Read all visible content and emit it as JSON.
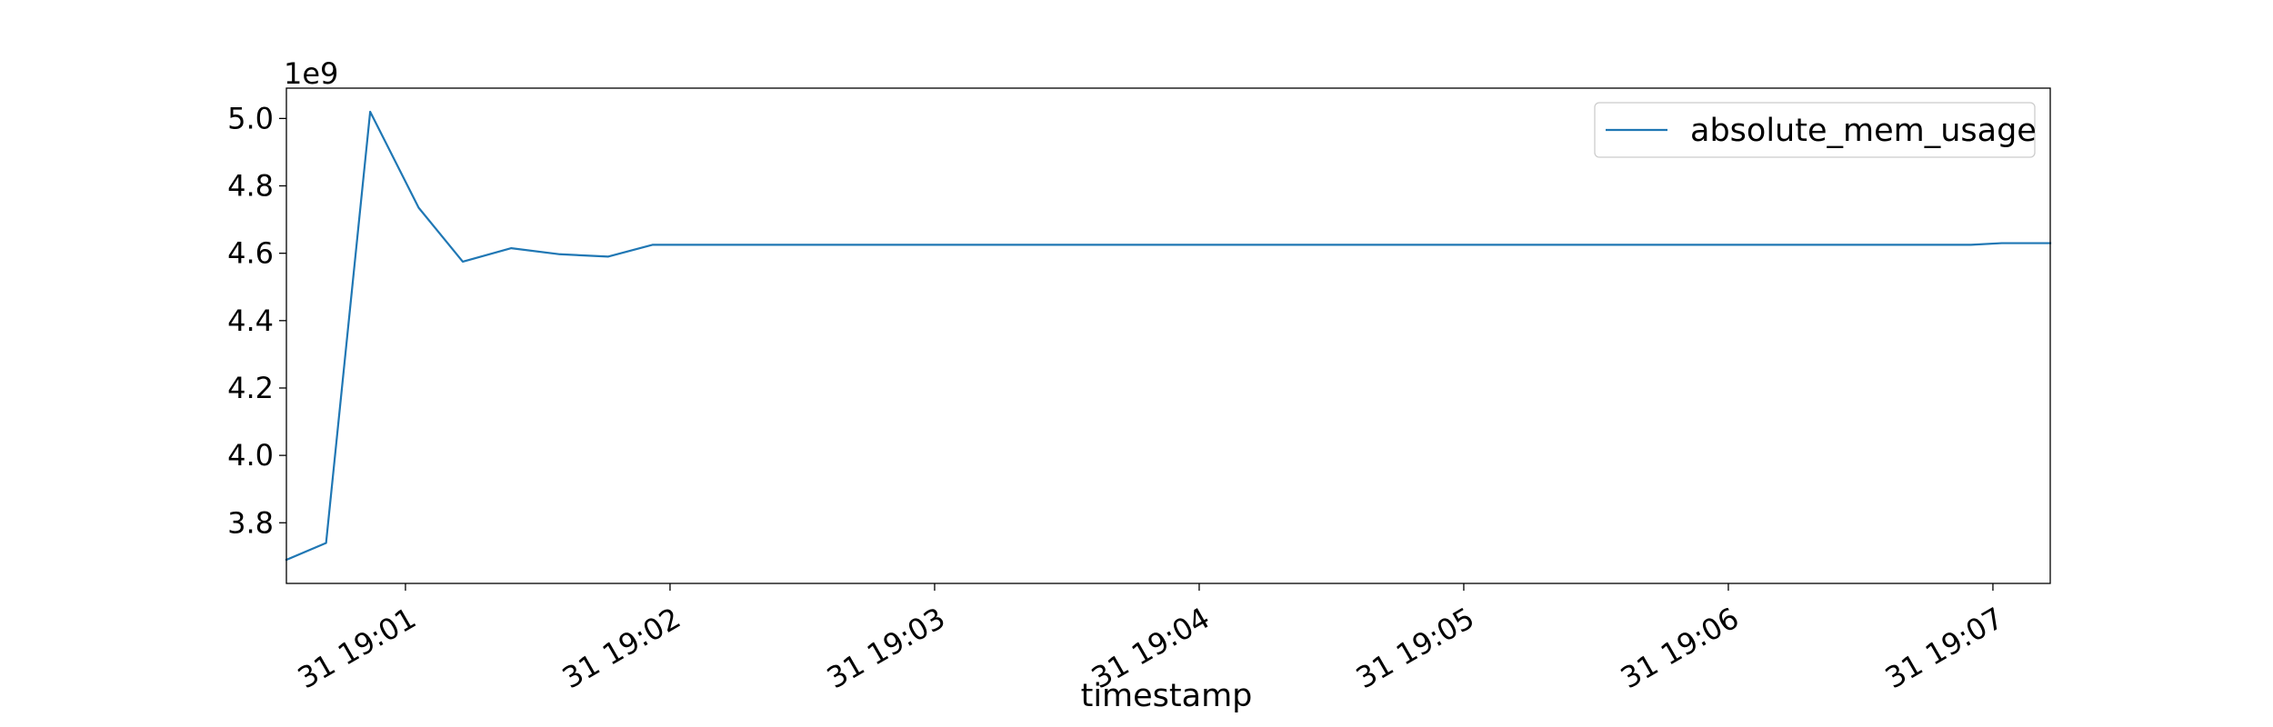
{
  "chart_data": {
    "type": "line",
    "title": "",
    "xlabel": "timestamp",
    "ylabel": "",
    "y_offset_label": "1e9",
    "y_scale_factor": 1000000000,
    "grid": false,
    "legend_position": "top-right",
    "x_axis_type": "datetime",
    "xlim": [
      "2024-12-31 19:00:33",
      "2024-12-31 19:07:13"
    ],
    "ylim": [
      3620000000,
      5090000000
    ],
    "y_ticks": [
      3800000000,
      4000000000,
      4200000000,
      4400000000,
      4600000000,
      4800000000,
      5000000000
    ],
    "y_tick_labels": [
      "3.8",
      "4.0",
      "4.2",
      "4.4",
      "4.6",
      "4.8",
      "5.0"
    ],
    "x_ticks": [
      "2024-12-31 19:01:00",
      "2024-12-31 19:02:00",
      "2024-12-31 19:03:00",
      "2024-12-31 19:04:00",
      "2024-12-31 19:05:00",
      "2024-12-31 19:06:00",
      "2024-12-31 19:07:00"
    ],
    "x_tick_labels": [
      "31 19:01",
      "31 19:02",
      "31 19:03",
      "31 19:04",
      "31 19:05",
      "31 19:06",
      "31 19:07"
    ],
    "series": [
      {
        "name": "absolute_mem_usage",
        "color": "#1f77b4",
        "x": [
          "2024-12-31 19:00:33",
          "2024-12-31 19:00:42",
          "2024-12-31 19:00:52",
          "2024-12-31 19:01:03",
          "2024-12-31 19:01:13",
          "2024-12-31 19:01:24",
          "2024-12-31 19:01:35",
          "2024-12-31 19:01:46",
          "2024-12-31 19:01:56",
          "2024-12-31 19:02:30",
          "2024-12-31 19:03:30",
          "2024-12-31 19:04:30",
          "2024-12-31 19:05:30",
          "2024-12-31 19:06:30",
          "2024-12-31 19:06:55",
          "2024-12-31 19:07:02",
          "2024-12-31 19:07:13"
        ],
        "values": [
          3690000000,
          3740000000,
          5020000000,
          4735000000,
          4575000000,
          4615000000,
          4597000000,
          4590000000,
          4625000000,
          4625000000,
          4625000000,
          4625000000,
          4625000000,
          4625000000,
          4625000000,
          4630000000,
          4630000000
        ]
      }
    ]
  }
}
